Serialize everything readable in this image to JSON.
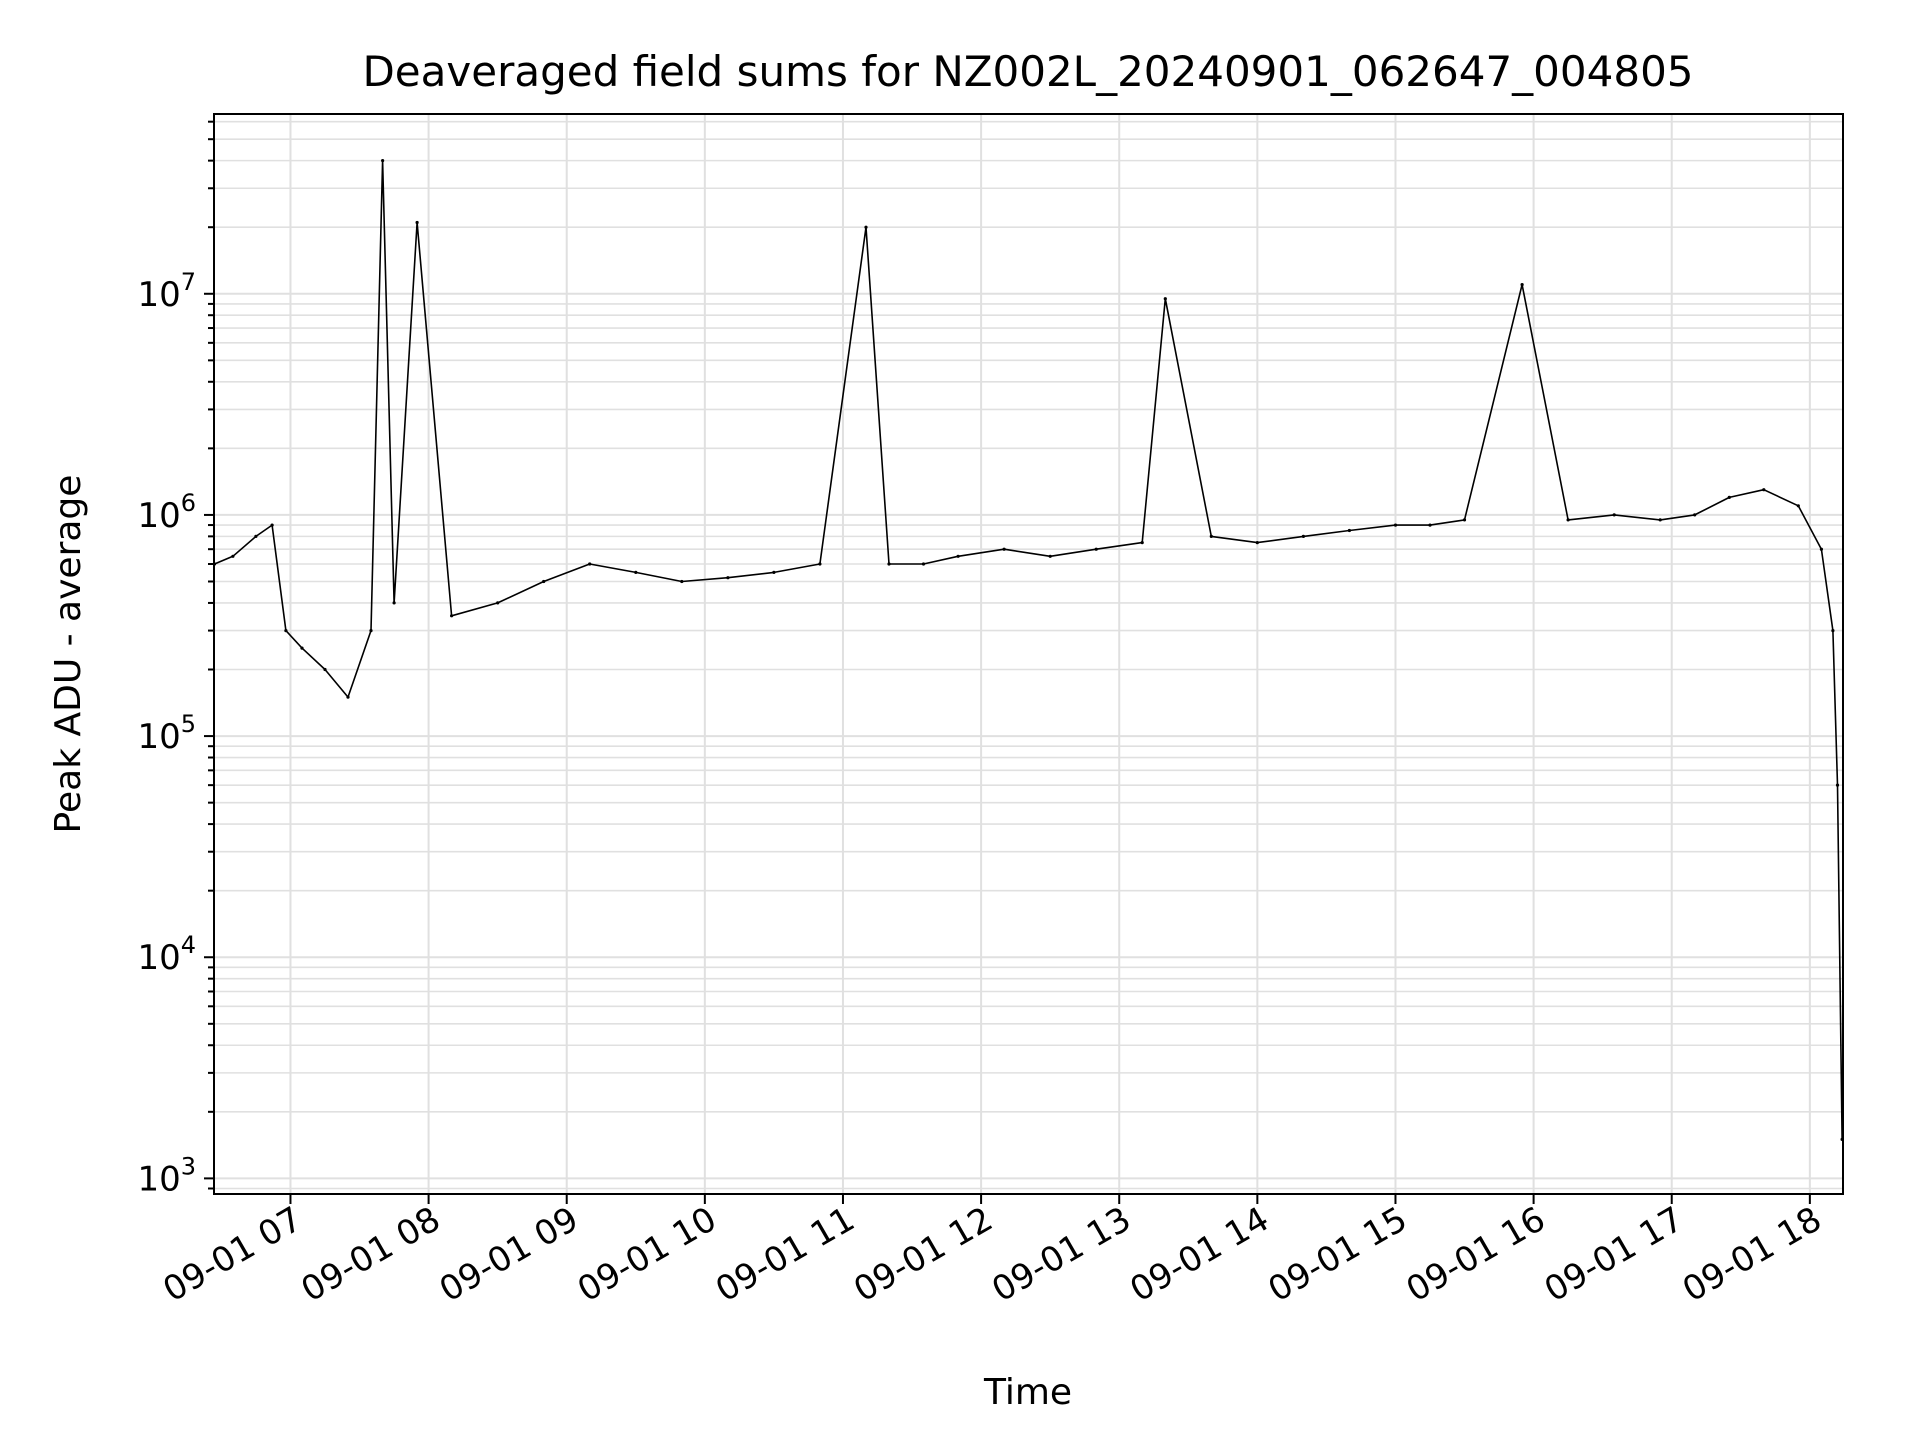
{
  "chart_data": {
    "type": "line",
    "title": "Deaveraged field sums for NZ002L_20240901_062647_004805",
    "xlabel": "Time",
    "ylabel": "Peak ADU - average",
    "yscale": "log",
    "ylim": [
      850,
      65000000
    ],
    "xlim": [
      "2024-09-01 06:26:47",
      "2024-09-01 18:14:24"
    ],
    "grid": true,
    "grid_color": "#e0e0e0",
    "line_color": "#000000",
    "x_ticks": [
      "09-01 07",
      "09-01 08",
      "09-01 09",
      "09-01 10",
      "09-01 11",
      "09-01 12",
      "09-01 13",
      "09-01 14",
      "09-01 15",
      "09-01 16",
      "09-01 17",
      "09-01 18"
    ],
    "y_ticks": [
      {
        "value": 1000,
        "base": "10",
        "exp": "3"
      },
      {
        "value": 10000,
        "base": "10",
        "exp": "4"
      },
      {
        "value": 100000,
        "base": "10",
        "exp": "5"
      },
      {
        "value": 1000000,
        "base": "10",
        "exp": "6"
      },
      {
        "value": 10000000,
        "base": "10",
        "exp": "7"
      }
    ],
    "series": [
      {
        "x": [
          "2024-09-01 06:27",
          "2024-09-01 06:35",
          "2024-09-01 06:45",
          "2024-09-01 06:52",
          "2024-09-01 06:58",
          "2024-09-01 07:05",
          "2024-09-01 07:15",
          "2024-09-01 07:25",
          "2024-09-01 07:35",
          "2024-09-01 07:40",
          "2024-09-01 07:45",
          "2024-09-01 07:55",
          "2024-09-01 08:10",
          "2024-09-01 08:30",
          "2024-09-01 08:50",
          "2024-09-01 09:10",
          "2024-09-01 09:30",
          "2024-09-01 09:50",
          "2024-09-01 10:10",
          "2024-09-01 10:30",
          "2024-09-01 10:50",
          "2024-09-01 11:10",
          "2024-09-01 11:20",
          "2024-09-01 11:35",
          "2024-09-01 11:50",
          "2024-09-01 12:10",
          "2024-09-01 12:30",
          "2024-09-01 12:50",
          "2024-09-01 13:10",
          "2024-09-01 13:20",
          "2024-09-01 13:40",
          "2024-09-01 14:00",
          "2024-09-01 14:20",
          "2024-09-01 14:40",
          "2024-09-01 15:00",
          "2024-09-01 15:15",
          "2024-09-01 15:30",
          "2024-09-01 15:55",
          "2024-09-01 16:15",
          "2024-09-01 16:35",
          "2024-09-01 16:55",
          "2024-09-01 17:10",
          "2024-09-01 17:25",
          "2024-09-01 17:40",
          "2024-09-01 17:55",
          "2024-09-01 18:05",
          "2024-09-01 18:10",
          "2024-09-01 18:12",
          "2024-09-01 18:14"
        ],
        "y": [
          600000,
          650000,
          800000,
          900000,
          300000,
          250000,
          200000,
          150000,
          300000,
          40000000,
          400000,
          21000000,
          350000,
          400000,
          500000,
          600000,
          550000,
          500000,
          520000,
          550000,
          600000,
          20000000,
          600000,
          600000,
          650000,
          700000,
          650000,
          700000,
          750000,
          9500000,
          800000,
          750000,
          800000,
          850000,
          900000,
          900000,
          950000,
          11000000,
          950000,
          1000000,
          950000,
          1000000,
          1200000,
          1300000,
          1100000,
          700000,
          300000,
          60000,
          1500
        ]
      }
    ]
  }
}
